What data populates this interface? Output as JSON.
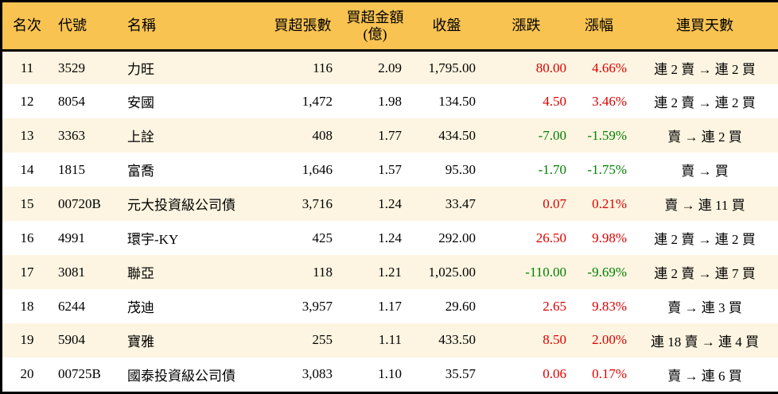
{
  "colors": {
    "header_bg": "#f8c351",
    "row_alt_bg": "#fdf5e1",
    "row_bg": "#ffffff",
    "up": "#dd0000",
    "down": "#008000",
    "border": "#000000"
  },
  "table": {
    "headers": [
      {
        "key": "rank",
        "label": "名次"
      },
      {
        "key": "code",
        "label": "代號"
      },
      {
        "key": "name",
        "label": "名稱"
      },
      {
        "key": "volume",
        "label": "買超張數"
      },
      {
        "key": "amount",
        "label": "買超金額",
        "label2": "(億)"
      },
      {
        "key": "close",
        "label": "收盤"
      },
      {
        "key": "change",
        "label": "漲跌"
      },
      {
        "key": "pct",
        "label": "漲幅"
      },
      {
        "key": "streak",
        "label": "連買天數"
      }
    ]
  },
  "chart_data": {
    "type": "table",
    "title": "",
    "columns": [
      "名次",
      "代號",
      "名稱",
      "買超張數",
      "買超金額(億)",
      "收盤",
      "漲跌",
      "漲幅",
      "連買天數"
    ],
    "rows": [
      {
        "rank": "11",
        "code": "3529",
        "name": "力旺",
        "volume": "116",
        "amount": "2.09",
        "close": "1,795.00",
        "change": "80.00",
        "pct": "4.66%",
        "streak": "連 2 賣 → 連 2 買",
        "direction": "up"
      },
      {
        "rank": "12",
        "code": "8054",
        "name": "安國",
        "volume": "1,472",
        "amount": "1.98",
        "close": "134.50",
        "change": "4.50",
        "pct": "3.46%",
        "streak": "連 2 賣 → 連 2 買",
        "direction": "up"
      },
      {
        "rank": "13",
        "code": "3363",
        "name": "上詮",
        "volume": "408",
        "amount": "1.77",
        "close": "434.50",
        "change": "-7.00",
        "pct": "-1.59%",
        "streak": "賣 → 連 2 買",
        "direction": "down"
      },
      {
        "rank": "14",
        "code": "1815",
        "name": "富喬",
        "volume": "1,646",
        "amount": "1.57",
        "close": "95.30",
        "change": "-1.70",
        "pct": "-1.75%",
        "streak": "賣 → 買",
        "direction": "down"
      },
      {
        "rank": "15",
        "code": "00720B",
        "name": "元大投資級公司債",
        "volume": "3,716",
        "amount": "1.24",
        "close": "33.47",
        "change": "0.07",
        "pct": "0.21%",
        "streak": "賣 → 連 11 買",
        "direction": "up"
      },
      {
        "rank": "16",
        "code": "4991",
        "name": "環宇-KY",
        "volume": "425",
        "amount": "1.24",
        "close": "292.00",
        "change": "26.50",
        "pct": "9.98%",
        "streak": "連 2 賣 → 連 2 買",
        "direction": "up"
      },
      {
        "rank": "17",
        "code": "3081",
        "name": "聯亞",
        "volume": "118",
        "amount": "1.21",
        "close": "1,025.00",
        "change": "-110.00",
        "pct": "-9.69%",
        "streak": "連 2 賣 → 連 7 買",
        "direction": "down"
      },
      {
        "rank": "18",
        "code": "6244",
        "name": "茂迪",
        "volume": "3,957",
        "amount": "1.17",
        "close": "29.60",
        "change": "2.65",
        "pct": "9.83%",
        "streak": "賣 → 連 3 買",
        "direction": "up"
      },
      {
        "rank": "19",
        "code": "5904",
        "name": "寶雅",
        "volume": "255",
        "amount": "1.11",
        "close": "433.50",
        "change": "8.50",
        "pct": "2.00%",
        "streak": "連 18 賣 → 連 4 買",
        "direction": "up"
      },
      {
        "rank": "20",
        "code": "00725B",
        "name": "國泰投資級公司債",
        "volume": "3,083",
        "amount": "1.10",
        "close": "35.57",
        "change": "0.06",
        "pct": "0.17%",
        "streak": "賣 → 連 6 買",
        "direction": "up"
      }
    ]
  }
}
